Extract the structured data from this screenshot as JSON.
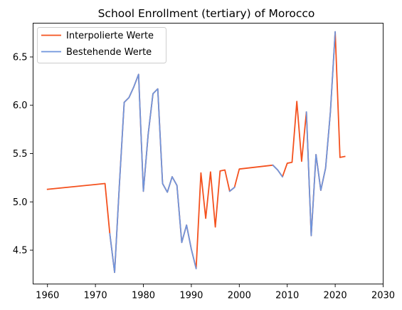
{
  "chart_data": {
    "type": "line",
    "title": "School Enrollment (tertiary) of Morocco",
    "xlabel": "",
    "ylabel": "",
    "xlim": [
      1957,
      2030
    ],
    "ylim": [
      4.15,
      6.85
    ],
    "xticks": [
      1960,
      1970,
      1980,
      1990,
      2000,
      2010,
      2020,
      2030
    ],
    "yticks": [
      4.5,
      5.0,
      5.5,
      6.0,
      6.5
    ],
    "xtick_labels": [
      "1960",
      "1970",
      "1980",
      "1990",
      "2000",
      "2010",
      "2020",
      "2030"
    ],
    "ytick_labels": [
      "4.5",
      "5.0",
      "5.5",
      "6.0",
      "6.5"
    ],
    "grid": false,
    "legend_position": "top-left",
    "series": [
      {
        "name": "Interpolierte Werte",
        "color": "#f4511e",
        "x": [
          1960,
          1972,
          1973,
          1974,
          1975,
          1976,
          1977,
          1978,
          1979,
          1980,
          1981,
          1982,
          1983,
          1984,
          1985,
          1986,
          1987,
          1988,
          1989,
          1990,
          1991,
          1992,
          1993,
          1994,
          1995,
          1996,
          1997,
          1998,
          1999,
          2000,
          2007,
          2008,
          2009,
          2010,
          2011,
          2012,
          2013,
          2014,
          2015,
          2016,
          2017,
          2018,
          2019,
          2020,
          2021,
          2022
        ],
        "y": [
          5.13,
          5.19,
          4.67,
          4.27,
          5.18,
          6.03,
          6.08,
          6.19,
          6.32,
          5.11,
          5.7,
          6.12,
          6.17,
          5.19,
          5.1,
          5.26,
          5.17,
          4.58,
          4.76,
          4.51,
          4.31,
          5.3,
          4.83,
          5.31,
          4.74,
          5.32,
          5.33,
          5.11,
          5.15,
          5.34,
          5.38,
          5.33,
          5.26,
          5.4,
          5.41,
          6.04,
          5.42,
          5.93,
          4.65,
          5.49,
          5.12,
          5.35,
          5.93,
          6.76,
          5.46,
          5.47
        ]
      },
      {
        "name": "Bestehende Werte",
        "color": "#6f95dc",
        "segments": [
          {
            "x": [
              1973,
              1974,
              1975,
              1976,
              1977,
              1978,
              1979,
              1980,
              1981,
              1982,
              1983,
              1984,
              1985,
              1986,
              1987,
              1988,
              1989,
              1990,
              1991
            ],
            "y": [
              4.67,
              4.27,
              5.18,
              6.03,
              6.08,
              6.19,
              6.32,
              5.11,
              5.7,
              6.12,
              6.17,
              5.19,
              5.1,
              5.26,
              5.17,
              4.58,
              4.76,
              4.51,
              4.31
            ]
          },
          {
            "x": [
              1998,
              1999
            ],
            "y": [
              5.11,
              5.15
            ]
          },
          {
            "x": [
              2007,
              2008,
              2009
            ],
            "y": [
              5.38,
              5.33,
              5.26
            ]
          },
          {
            "x": [
              2014,
              2015,
              2016,
              2017,
              2018,
              2019,
              2020
            ],
            "y": [
              5.93,
              4.65,
              5.49,
              5.12,
              5.35,
              5.93,
              6.76
            ]
          }
        ]
      }
    ]
  }
}
